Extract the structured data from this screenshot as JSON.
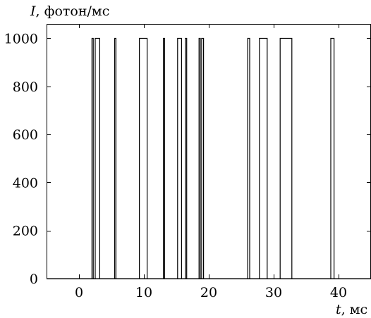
{
  "chart_data": {
    "type": "line",
    "title": "",
    "ylabel_symbol": "I",
    "ylabel_unit": ", фотон/мс",
    "xlabel_symbol": "t",
    "xlabel_unit": ", мс",
    "xlim": [
      -5,
      45
    ],
    "ylim": [
      0,
      1060
    ],
    "xticks": [
      0,
      10,
      20,
      30,
      40
    ],
    "xtick_labels": [
      "0",
      "10",
      "20",
      "30",
      "40"
    ],
    "yticks": [
      0,
      200,
      400,
      600,
      800,
      1000
    ],
    "ytick_labels": [
      "0",
      "200",
      "400",
      "600",
      "800",
      "1000"
    ],
    "grid": false,
    "line_color": "#000000",
    "series": [
      {
        "pulses": [
          {
            "start": 2.0,
            "end": 2.2,
            "value": 1000
          },
          {
            "start": 2.5,
            "end": 3.2,
            "value": 1000
          },
          {
            "start": 5.5,
            "end": 5.7,
            "value": 1000
          },
          {
            "start": 9.3,
            "end": 10.5,
            "value": 1000
          },
          {
            "start": 13.0,
            "end": 13.2,
            "value": 1000
          },
          {
            "start": 15.2,
            "end": 15.8,
            "value": 1000
          },
          {
            "start": 16.4,
            "end": 16.6,
            "value": 1000
          },
          {
            "start": 18.5,
            "end": 18.7,
            "value": 1000
          },
          {
            "start": 18.9,
            "end": 19.2,
            "value": 1000
          },
          {
            "start": 26.0,
            "end": 26.3,
            "value": 1000
          },
          {
            "start": 27.8,
            "end": 29.0,
            "value": 1000
          },
          {
            "start": 31.0,
            "end": 32.8,
            "value": 1000
          },
          {
            "start": 38.8,
            "end": 39.3,
            "value": 1000
          }
        ]
      }
    ]
  }
}
